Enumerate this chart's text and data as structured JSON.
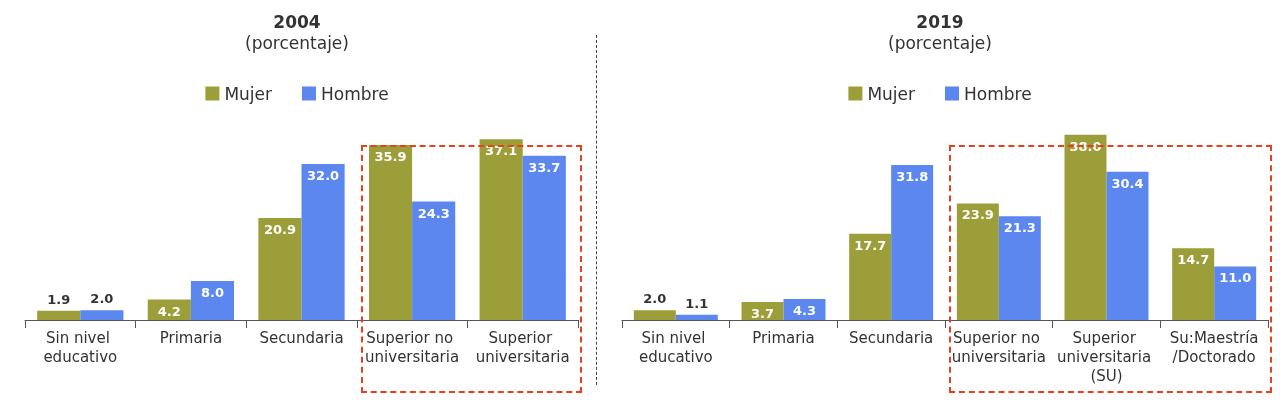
{
  "chart_data": [
    {
      "type": "bar",
      "title": "2004",
      "subtitle": "(porcentaje)",
      "categories": [
        "Sin nivel educativo",
        "Primaria",
        "Secundaria",
        "Superior no universitaria",
        "Superior universitaria"
      ],
      "series": [
        {
          "name": "Mujer",
          "color": "#9c9e39",
          "values": [
            1.9,
            4.2,
            20.9,
            35.9,
            37.1
          ],
          "value_labels": [
            "1.9",
            "4.2",
            "20.9",
            "35.9",
            "37.1"
          ]
        },
        {
          "name": "Hombre",
          "color": "#5b87ee",
          "values": [
            2,
            8,
            32,
            24.3,
            33.7
          ],
          "value_labels": [
            "2.0",
            "8.0",
            "32.0",
            "24.3",
            "33.7"
          ]
        }
      ],
      "legend": "top"
    },
    {
      "type": "bar",
      "title": "2019",
      "subtitle": "(porcentaje)",
      "categories": [
        "Sin nivel educativo",
        "Primaria",
        "Secundaria",
        "Superior no universitaria",
        "Superior universitaria (SU)",
        "Su:Maestría/Doctorado"
      ],
      "series": [
        {
          "name": "Mujer",
          "color": "#9c9e39",
          "values": [
            2,
            3.7,
            17.7,
            23.9,
            38,
            14.7
          ],
          "value_labels": [
            "2.0",
            "3.7",
            "17.7",
            "23.9",
            "38.0",
            "14.7"
          ]
        },
        {
          "name": "Hombre",
          "color": "#5b87ee",
          "values": [
            1.1,
            4.3,
            31.8,
            21.3,
            30.4,
            11
          ],
          "value_labels": [
            "1.1",
            "4.3",
            "31.8",
            "21.3",
            "30.4",
            "11.0"
          ]
        }
      ],
      "legend": "top"
    }
  ]
}
